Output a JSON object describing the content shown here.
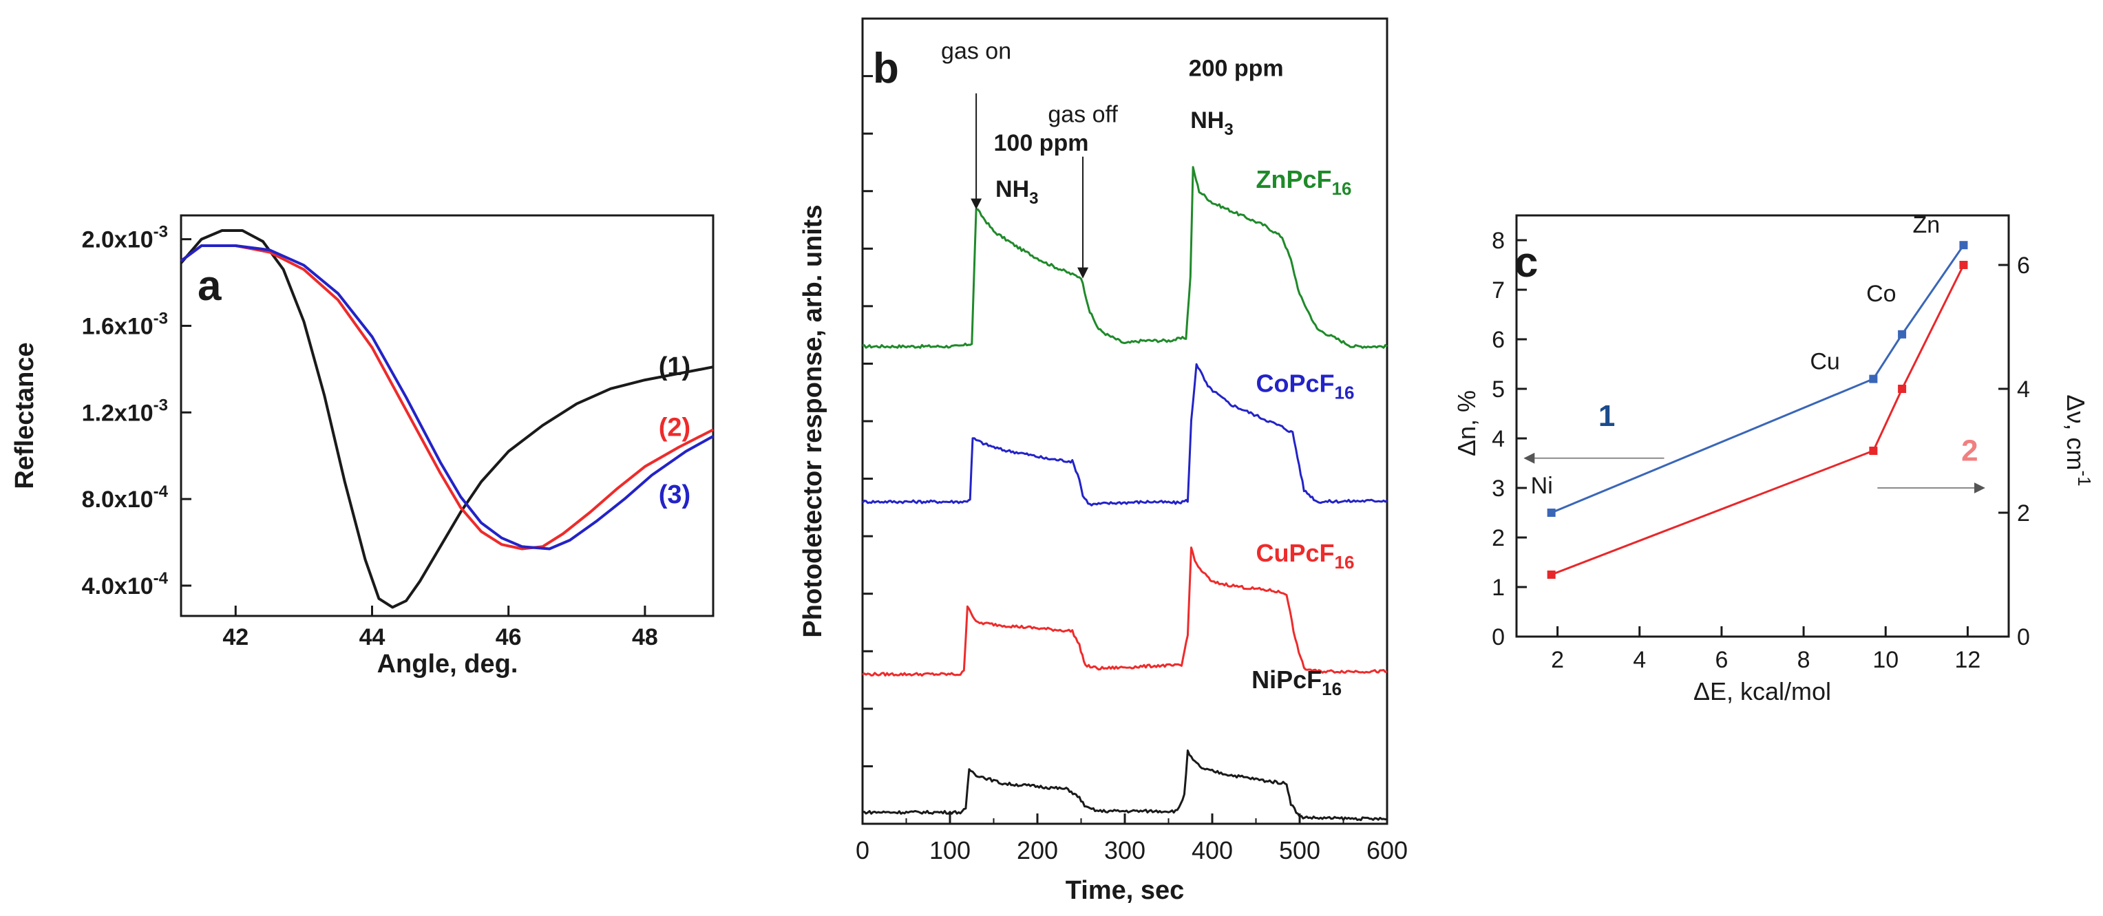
{
  "colors": {
    "black": "#1a1a1a",
    "red": "#ee2b2b",
    "blue": "#2323c8",
    "green": "#1f8a2a",
    "ptblue": "#3a66b8",
    "ptred": "#e8272a",
    "navy": "#1a4b8c",
    "salmon": "#f08080",
    "gray": "#8a8a8a"
  },
  "chart_data": [
    {
      "type": "line",
      "panel_label": "a",
      "xlabel": "Angle, deg.",
      "ylabel": "Reflectance",
      "xlim": [
        41.2,
        49.0
      ],
      "ylim": [
        0.00026,
        0.00211
      ],
      "xticks": [
        {
          "v": 42,
          "label": "42"
        },
        {
          "v": 44,
          "label": "44"
        },
        {
          "v": 46,
          "label": "46"
        },
        {
          "v": 48,
          "label": "48"
        }
      ],
      "yticks": [
        {
          "v": 0.0004,
          "mant": "4.0x10",
          "exp": "-4"
        },
        {
          "v": 0.0008,
          "mant": "8.0x10",
          "exp": "-4"
        },
        {
          "v": 0.0012,
          "mant": "1.2x10",
          "exp": "-3"
        },
        {
          "v": 0.0016,
          "mant": "1.6x10",
          "exp": "-3"
        },
        {
          "v": 0.002,
          "mant": "2.0x10",
          "exp": "-3"
        }
      ],
      "series": [
        {
          "name": "(1)",
          "color": "#1a1a1a",
          "label_at": [
            48.2,
            0.00141
          ],
          "x": [
            41.2,
            41.5,
            41.8,
            42.1,
            42.4,
            42.7,
            43.0,
            43.3,
            43.6,
            43.9,
            44.1,
            44.3,
            44.5,
            44.7,
            45.0,
            45.3,
            45.6,
            46.0,
            46.5,
            47.0,
            47.5,
            48.0,
            48.5,
            49.0
          ],
          "y": [
            0.00189,
            0.002,
            0.00204,
            0.00204,
            0.00199,
            0.00186,
            0.00162,
            0.00128,
            0.00088,
            0.00052,
            0.00034,
            0.0003,
            0.00033,
            0.00042,
            0.00058,
            0.00074,
            0.00088,
            0.00102,
            0.00114,
            0.00124,
            0.00131,
            0.00135,
            0.00138,
            0.00141
          ]
        },
        {
          "name": "(2)",
          "color": "#ee2b2b",
          "label_at": [
            48.2,
            0.00113
          ],
          "x": [
            41.2,
            41.5,
            42.0,
            42.5,
            43.0,
            43.5,
            44.0,
            44.5,
            45.0,
            45.3,
            45.6,
            45.9,
            46.2,
            46.5,
            46.8,
            47.2,
            47.6,
            48.0,
            48.5,
            49.0
          ],
          "y": [
            0.0019,
            0.00197,
            0.00197,
            0.00194,
            0.00186,
            0.00172,
            0.0015,
            0.00121,
            0.00092,
            0.00076,
            0.00065,
            0.00059,
            0.00057,
            0.00058,
            0.00064,
            0.00074,
            0.00085,
            0.00095,
            0.00104,
            0.00112
          ]
        },
        {
          "name": "(3)",
          "color": "#2323c8",
          "label_at": [
            48.2,
            0.00082
          ],
          "x": [
            41.2,
            41.5,
            42.0,
            42.5,
            43.0,
            43.5,
            44.0,
            44.5,
            45.0,
            45.3,
            45.6,
            45.9,
            46.2,
            46.6,
            46.9,
            47.3,
            47.7,
            48.1,
            48.6,
            49.0
          ],
          "y": [
            0.0019,
            0.00197,
            0.00197,
            0.00195,
            0.00188,
            0.00175,
            0.00155,
            0.00127,
            0.00097,
            0.00081,
            0.00069,
            0.00062,
            0.00058,
            0.00057,
            0.00061,
            0.0007,
            0.0008,
            0.00091,
            0.00102,
            0.00109
          ]
        }
      ]
    },
    {
      "type": "line",
      "panel_label": "b",
      "xlabel": "Time, sec",
      "ylabel": "Photodetector response, arb. units",
      "xlim": [
        0,
        600
      ],
      "ylim": [
        0,
        14
      ],
      "xticks": [
        0,
        100,
        200,
        300,
        400,
        500,
        600
      ],
      "series": [
        {
          "name": "ZnPcF16",
          "base": "ZnPcF",
          "sub": "16",
          "color": "#1f8a2a",
          "label_at": [
            450,
            11.2
          ],
          "baseline": 8.3,
          "x": [
            0,
            110,
            125,
            130,
            140,
            150,
            180,
            210,
            240,
            250,
            260,
            270,
            280,
            300,
            320,
            350,
            370,
            375,
            378,
            385,
            400,
            430,
            460,
            480,
            490,
            500,
            520,
            560,
            600
          ],
          "y": [
            8.3,
            8.3,
            8.35,
            10.7,
            10.5,
            10.3,
            10.0,
            9.75,
            9.55,
            9.5,
            8.9,
            8.6,
            8.5,
            8.35,
            8.4,
            8.4,
            8.45,
            9.5,
            11.4,
            11.0,
            10.8,
            10.6,
            10.4,
            10.2,
            9.8,
            9.2,
            8.6,
            8.3,
            8.3
          ]
        },
        {
          "name": "CoPcF16",
          "base": "CoPcF",
          "sub": "16",
          "color": "#2323c8",
          "label_at": [
            450,
            7.65
          ],
          "baseline": 5.6,
          "x": [
            0,
            118,
            123,
            126,
            140,
            160,
            180,
            210,
            240,
            248,
            252,
            260,
            290,
            330,
            360,
            372,
            376,
            382,
            395,
            420,
            450,
            480,
            492,
            505,
            520,
            600
          ],
          "y": [
            5.6,
            5.6,
            5.65,
            6.7,
            6.6,
            6.5,
            6.45,
            6.35,
            6.3,
            6.0,
            5.7,
            5.55,
            5.58,
            5.6,
            5.58,
            5.62,
            7.0,
            8.0,
            7.6,
            7.3,
            7.1,
            6.9,
            6.8,
            5.8,
            5.6,
            5.62
          ]
        },
        {
          "name": "CuPcF16",
          "base": "CuPcF",
          "sub": "16",
          "color": "#ee2b2b",
          "label_at": [
            450,
            4.7
          ],
          "baseline": 2.6,
          "x": [
            0,
            112,
            116,
            120,
            130,
            160,
            200,
            240,
            248,
            255,
            270,
            300,
            340,
            365,
            372,
            376,
            382,
            400,
            440,
            470,
            485,
            495,
            505,
            520,
            600
          ],
          "y": [
            2.6,
            2.6,
            2.65,
            3.8,
            3.5,
            3.45,
            3.4,
            3.35,
            3.1,
            2.75,
            2.7,
            2.72,
            2.75,
            2.75,
            3.3,
            4.8,
            4.5,
            4.2,
            4.1,
            4.05,
            4.0,
            3.2,
            2.7,
            2.65,
            2.65
          ]
        },
        {
          "name": "NiPcF16",
          "base": "NiPcF",
          "sub": "16",
          "color": "#1a1a1a",
          "label_at": [
            445,
            2.5
          ],
          "baseline": 0.2,
          "x": [
            0,
            112,
            118,
            122,
            130,
            160,
            200,
            235,
            248,
            256,
            270,
            300,
            340,
            360,
            368,
            372,
            378,
            390,
            420,
            460,
            485,
            490,
            500,
            520,
            600
          ],
          "y": [
            0.2,
            0.2,
            0.25,
            0.95,
            0.85,
            0.7,
            0.65,
            0.6,
            0.45,
            0.28,
            0.22,
            0.22,
            0.22,
            0.22,
            0.5,
            1.25,
            1.1,
            0.95,
            0.85,
            0.75,
            0.7,
            0.35,
            0.12,
            0.1,
            0.08
          ]
        }
      ],
      "annotations": [
        {
          "text": "gas on",
          "pos": [
            130,
            13.3
          ],
          "arrow_from": [
            130,
            12.7
          ],
          "arrow_to": [
            130,
            10.7
          ]
        },
        {
          "text": "gas off",
          "pos": [
            252,
            12.2
          ],
          "arrow_from": [
            252,
            11.6
          ],
          "arrow_to": [
            252,
            9.5
          ]
        },
        {
          "text": "100 ppm",
          "pos": [
            150,
            11.7
          ],
          "bold": true
        },
        {
          "text": "NH",
          "sub": "3",
          "pos": [
            152,
            10.9
          ],
          "bold": true
        },
        {
          "text": "200 ppm",
          "pos": [
            373,
            13.0
          ],
          "bold": true
        },
        {
          "text": "NH",
          "sub": "3",
          "pos": [
            375,
            12.1
          ],
          "bold": true
        }
      ]
    },
    {
      "type": "line",
      "panel_label": "c",
      "xlabel": "ΔE, kcal/mol",
      "ylabel_left": "Δn, %",
      "ylabel_right": "Δν, cm",
      "ylabel_right_exp": "-1",
      "xlim": [
        1,
        13
      ],
      "ylim_left": [
        0,
        8.5
      ],
      "ylim_right": [
        0,
        6.8
      ],
      "xticks": [
        2,
        4,
        6,
        8,
        10,
        12
      ],
      "yticks_left": [
        0,
        1,
        2,
        3,
        4,
        5,
        6,
        7,
        8
      ],
      "yticks_right": [
        0,
        2,
        4,
        6
      ],
      "series": [
        {
          "name": "1",
          "axis": "left",
          "color": "#3a66b8",
          "x": [
            1.85,
            9.7,
            10.4,
            11.9
          ],
          "y": [
            2.5,
            5.2,
            6.1,
            7.9
          ],
          "point_labels": [
            "Ni",
            "Cu",
            "Co",
            "Zn"
          ]
        },
        {
          "name": "2",
          "axis": "right",
          "color": "#e8272a",
          "x": [
            1.85,
            9.7,
            10.4,
            11.9
          ],
          "y": [
            1.0,
            3.0,
            4.0,
            6.0
          ]
        }
      ],
      "series_markers": [
        {
          "text": "1",
          "color": "#1a4b8c",
          "pos": [
            3.2,
            4.25
          ],
          "arrow_from": [
            4.6,
            3.6
          ],
          "arrow_to": [
            1.2,
            3.6
          ]
        },
        {
          "text": "2",
          "color": "#f08080",
          "pos": [
            12.05,
            3.55
          ],
          "arrow_from": [
            9.8,
            3.0
          ],
          "arrow_to": [
            12.4,
            3.0
          ]
        }
      ]
    }
  ]
}
